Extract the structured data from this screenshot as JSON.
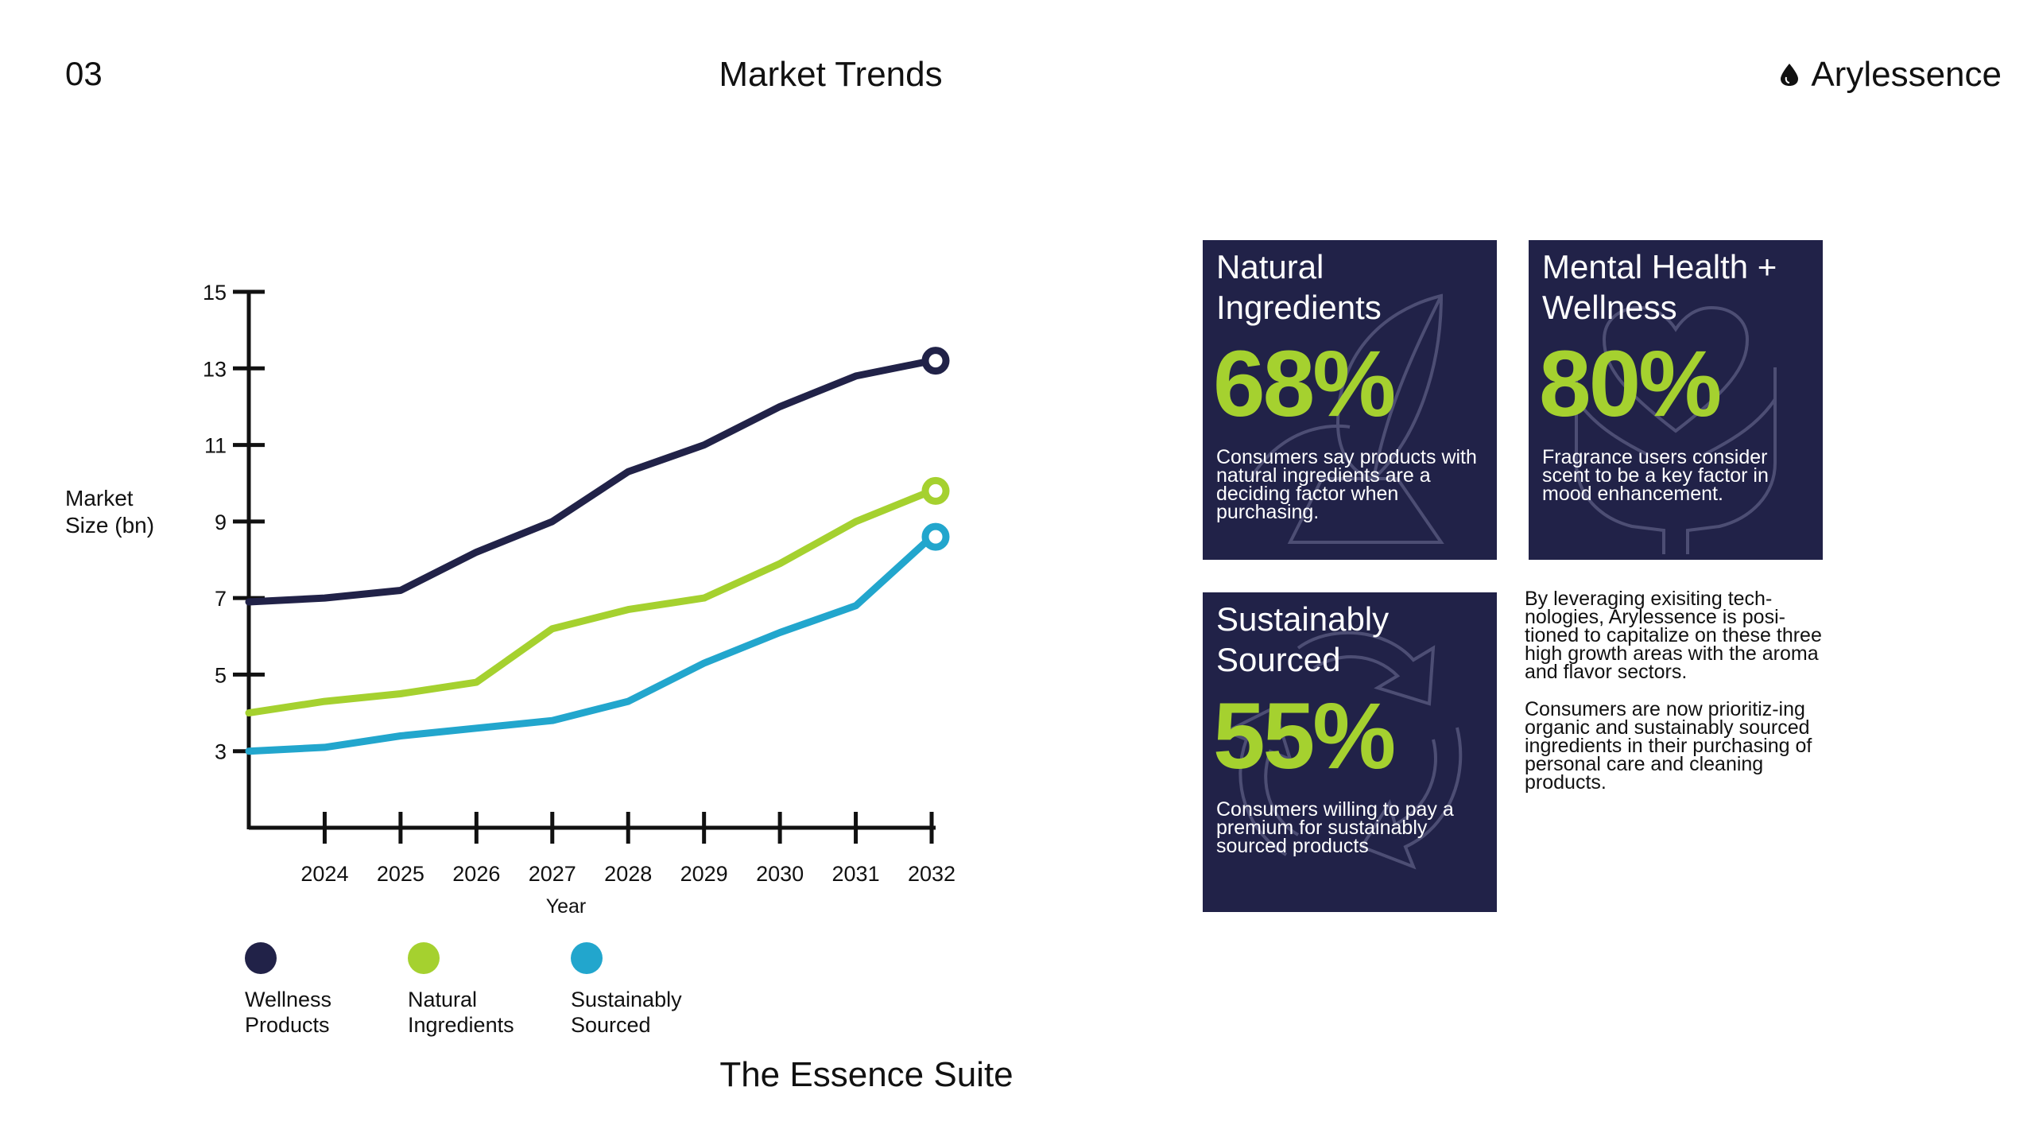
{
  "header": {
    "page_number": "03",
    "title": "Market Trends",
    "brand": "Arylessence"
  },
  "footer": {
    "title": "The Essence Suite"
  },
  "chart_data": {
    "type": "line",
    "title": "",
    "xlabel": "Year",
    "ylabel": "Market Size (bn)",
    "x": [
      2023,
      2024,
      2025,
      2026,
      2027,
      2028,
      2029,
      2030,
      2031,
      2032
    ],
    "x_tick_labels": [
      "2024",
      "2025",
      "2026",
      "2027",
      "2028",
      "2029",
      "2030",
      "2031",
      "2032"
    ],
    "y_ticks": [
      3,
      5,
      7,
      9,
      11,
      13,
      15
    ],
    "ylim": [
      1,
      15
    ],
    "xlim": [
      2023,
      2032
    ],
    "grid": false,
    "legend_position": "bottom-left",
    "series": [
      {
        "name": "Wellness Products",
        "color": "#212248",
        "values": [
          6.9,
          7.0,
          7.2,
          8.2,
          9.0,
          10.3,
          11.0,
          12.0,
          12.8,
          13.2
        ]
      },
      {
        "name": "Natural Ingredients",
        "color": "#a5d12f",
        "values": [
          4.0,
          4.3,
          4.5,
          4.8,
          6.2,
          6.7,
          7.0,
          7.9,
          9.0,
          9.8
        ]
      },
      {
        "name": "Sustainably Sourced",
        "color": "#22a6cd",
        "values": [
          3.0,
          3.1,
          3.4,
          3.6,
          3.8,
          4.3,
          5.3,
          6.1,
          6.8,
          8.6
        ]
      }
    ]
  },
  "cards": [
    {
      "title": "Natural Ingredients",
      "stat": "68%",
      "description": "Consumers say products with natural ingredients are a deciding factor when purchasing.",
      "icon": "leaf-icon"
    },
    {
      "title": "Mental Health + Wellness",
      "stat": "80%",
      "description": "Fragrance users consider scent to be a key factor in mood enhancement.",
      "icon": "heart-hands-icon"
    },
    {
      "title": "Sustainably Sourced",
      "stat": "55%",
      "description": "Consumers willing to pay a premium for sustainably sourced products",
      "icon": "recycle-icon"
    }
  ],
  "side_text": {
    "paragraph_1": "By leveraging exisiting tech-nologies, Arylessence is posi-tioned to capitalize on these three high growth areas with the aroma and flavor sectors.",
    "paragraph_2": "Consumers are now prioritiz-ing organic and sustainably sourced ingredients in their purchasing of personal care and cleaning products."
  },
  "colors": {
    "navy": "#212248",
    "lime": "#a5d12f",
    "cyan": "#22a6cd"
  }
}
